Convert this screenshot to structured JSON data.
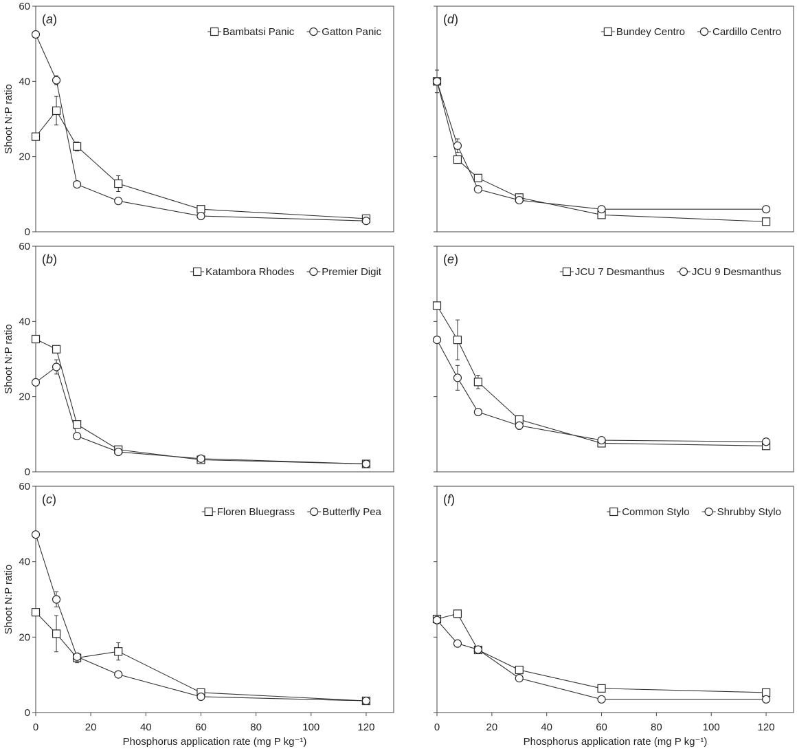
{
  "chart_data": [
    {
      "type": "line",
      "panel_label": "(a)",
      "x": [
        0,
        7.5,
        15,
        30,
        60,
        120
      ],
      "xlim": [
        0,
        130
      ],
      "ylim": [
        0,
        60
      ],
      "yticks": [
        0,
        20,
        40,
        60
      ],
      "ytick_labels": [
        "0",
        "20",
        "40",
        "60"
      ],
      "ylabel": "Shoot N:P ratio",
      "legend_position": "top-right",
      "series": [
        {
          "name": "Bambatsi Panic",
          "marker": "square",
          "values": [
            25.3,
            32.2,
            22.7,
            12.8,
            6.0,
            3.5
          ],
          "errors": [
            0,
            3.8,
            1.2,
            2.1,
            0,
            0
          ]
        },
        {
          "name": "Gatton Panic",
          "marker": "circle",
          "values": [
            52.5,
            40.3,
            12.6,
            8.2,
            4.2,
            2.9
          ],
          "errors": [
            0,
            1.2,
            0,
            0,
            0,
            0
          ]
        }
      ]
    },
    {
      "type": "line",
      "panel_label": "(b)",
      "x": [
        0,
        7.5,
        15,
        30,
        60,
        120
      ],
      "xlim": [
        0,
        130
      ],
      "ylim": [
        0,
        60
      ],
      "yticks": [
        0,
        20,
        40,
        60
      ],
      "ytick_labels": [
        "0",
        "20",
        "40",
        "60"
      ],
      "ylabel": "Shoot N:P ratio",
      "legend_position": "top-right",
      "series": [
        {
          "name": "Katambora Rhodes",
          "marker": "square",
          "values": [
            35.3,
            32.6,
            12.6,
            5.9,
            3.2,
            2.1
          ],
          "errors": [
            0,
            0,
            0,
            0,
            0,
            0
          ]
        },
        {
          "name": "Premier Digit",
          "marker": "circle",
          "values": [
            23.8,
            27.9,
            9.5,
            5.3,
            3.5,
            2.1
          ],
          "errors": [
            0,
            1.9,
            0,
            0,
            0,
            0
          ]
        }
      ]
    },
    {
      "type": "line",
      "panel_label": "(c)",
      "x": [
        0,
        7.5,
        15,
        30,
        60,
        120
      ],
      "xlim": [
        0,
        130
      ],
      "ylim": [
        0,
        60
      ],
      "yticks": [
        0,
        20,
        40,
        60
      ],
      "ytick_labels": [
        "0",
        "20",
        "40",
        "60"
      ],
      "xticks": [
        0,
        20,
        40,
        60,
        80,
        100,
        120
      ],
      "xtick_labels": [
        "0",
        "20",
        "40",
        "60",
        "80",
        "100",
        "120"
      ],
      "ylabel": "Shoot N:P ratio",
      "xlabel": "Phosphorus application rate (mg P kg⁻¹)",
      "legend_position": "top-right",
      "series": [
        {
          "name": "Floren Bluegrass",
          "marker": "square",
          "values": [
            26.6,
            20.9,
            14.5,
            16.2,
            5.3,
            3.1
          ],
          "errors": [
            0,
            4.8,
            1.3,
            2.3,
            0,
            0
          ]
        },
        {
          "name": "Butterfly Pea",
          "marker": "circle",
          "values": [
            47.2,
            30.0,
            14.8,
            10.1,
            4.2,
            3.1
          ],
          "errors": [
            0,
            2.0,
            0,
            0,
            0,
            0
          ]
        }
      ]
    },
    {
      "type": "line",
      "panel_label": "(d)",
      "x": [
        0,
        7.5,
        15,
        30,
        60,
        120
      ],
      "xlim": [
        0,
        130
      ],
      "ylim": [
        0,
        60
      ],
      "yticks": [
        0,
        20,
        40,
        60
      ],
      "legend_position": "top-right",
      "series": [
        {
          "name": "Bundey Centro",
          "marker": "square",
          "values": [
            40.0,
            19.2,
            14.3,
            9.1,
            4.5,
            2.7
          ],
          "errors": [
            3.0,
            0,
            0,
            0,
            0,
            0
          ]
        },
        {
          "name": "Cardillo Centro",
          "marker": "circle",
          "values": [
            40.0,
            22.9,
            11.3,
            8.4,
            6.0,
            6.0
          ],
          "errors": [
            0,
            1.8,
            0,
            0,
            0,
            0
          ]
        }
      ]
    },
    {
      "type": "line",
      "panel_label": "(e)",
      "x": [
        0,
        7.5,
        15,
        30,
        60,
        120
      ],
      "xlim": [
        0,
        130
      ],
      "ylim": [
        0,
        60
      ],
      "yticks": [
        0,
        20,
        40,
        60
      ],
      "legend_position": "top-right",
      "series": [
        {
          "name": "JCU 7 Desmanthus",
          "marker": "square",
          "values": [
            44.2,
            35.1,
            23.9,
            13.9,
            7.6,
            6.9
          ],
          "errors": [
            0,
            5.3,
            1.8,
            0,
            0,
            0
          ]
        },
        {
          "name": "JCU 9 Desmanthus",
          "marker": "circle",
          "values": [
            35.1,
            25.0,
            15.9,
            12.3,
            8.4,
            8.0
          ],
          "errors": [
            0,
            3.3,
            0,
            1.0,
            0,
            0
          ]
        }
      ]
    },
    {
      "type": "line",
      "panel_label": "(f)",
      "x": [
        0,
        7.5,
        15,
        30,
        60,
        120
      ],
      "xlim": [
        0,
        130
      ],
      "ylim": [
        0,
        60
      ],
      "yticks": [
        0,
        20,
        40,
        60
      ],
      "xticks": [
        0,
        20,
        40,
        60,
        80,
        100,
        120
      ],
      "xtick_labels": [
        "0",
        "20",
        "40",
        "60",
        "80",
        "100",
        "120"
      ],
      "xlabel": "Phosphorus application rate (mg P kg⁻¹)",
      "legend_position": "top-right",
      "series": [
        {
          "name": "Common Stylo",
          "marker": "square",
          "values": [
            24.8,
            26.2,
            16.6,
            11.3,
            6.4,
            5.3
          ],
          "errors": [
            0,
            0,
            0,
            0,
            0,
            0
          ]
        },
        {
          "name": "Shrubby Stylo",
          "marker": "circle",
          "values": [
            24.5,
            18.3,
            16.7,
            9.1,
            3.5,
            3.5
          ],
          "errors": [
            0,
            0,
            0,
            0,
            0,
            0
          ]
        }
      ]
    }
  ]
}
